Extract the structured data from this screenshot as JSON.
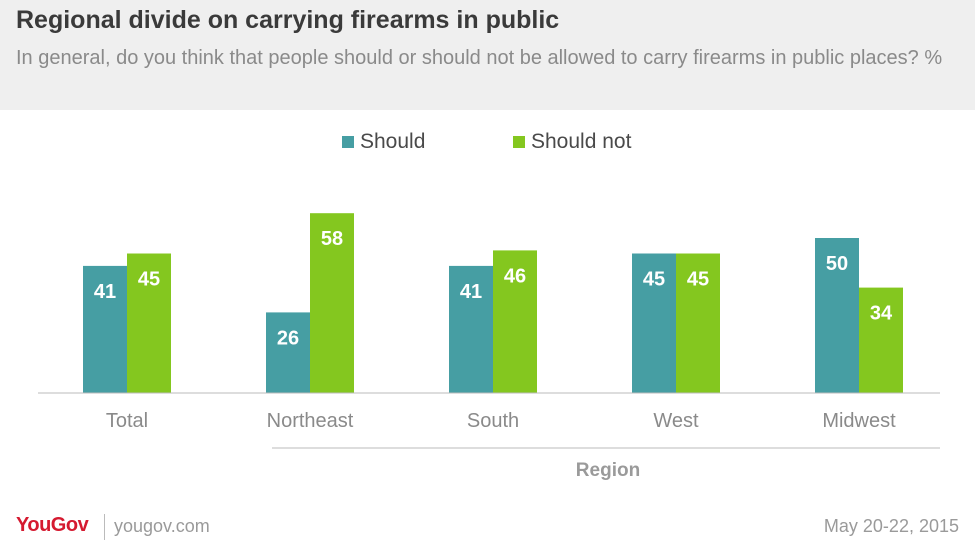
{
  "header": {
    "title": "Regional divide on carrying firearms in public",
    "subtitle": "In general, do you think that people should or should not be allowed to carry firearms in public places? %"
  },
  "footer": {
    "brand": "YouGov",
    "url": "yougov.com",
    "date": "May 20-22, 2015"
  },
  "chart_data": {
    "type": "bar",
    "title": "Regional divide on carrying firearms in public",
    "subtitle": "In general, do you think that people should or should not be allowed to carry firearms in public places? %",
    "categories": [
      "Total",
      "Northeast",
      "South",
      "West",
      "Midwest"
    ],
    "series": [
      {
        "name": "Should",
        "values": [
          41,
          26,
          41,
          45,
          50
        ],
        "color": "#469ea3"
      },
      {
        "name": "Should not",
        "values": [
          45,
          58,
          46,
          45,
          34
        ],
        "color": "#84c71f"
      }
    ],
    "group_label": "Region",
    "ylim": [
      0,
      70
    ],
    "grid": false,
    "legend_position": "top-center",
    "axis_color": "#bbbbbb",
    "label_color": "#ffffff"
  }
}
